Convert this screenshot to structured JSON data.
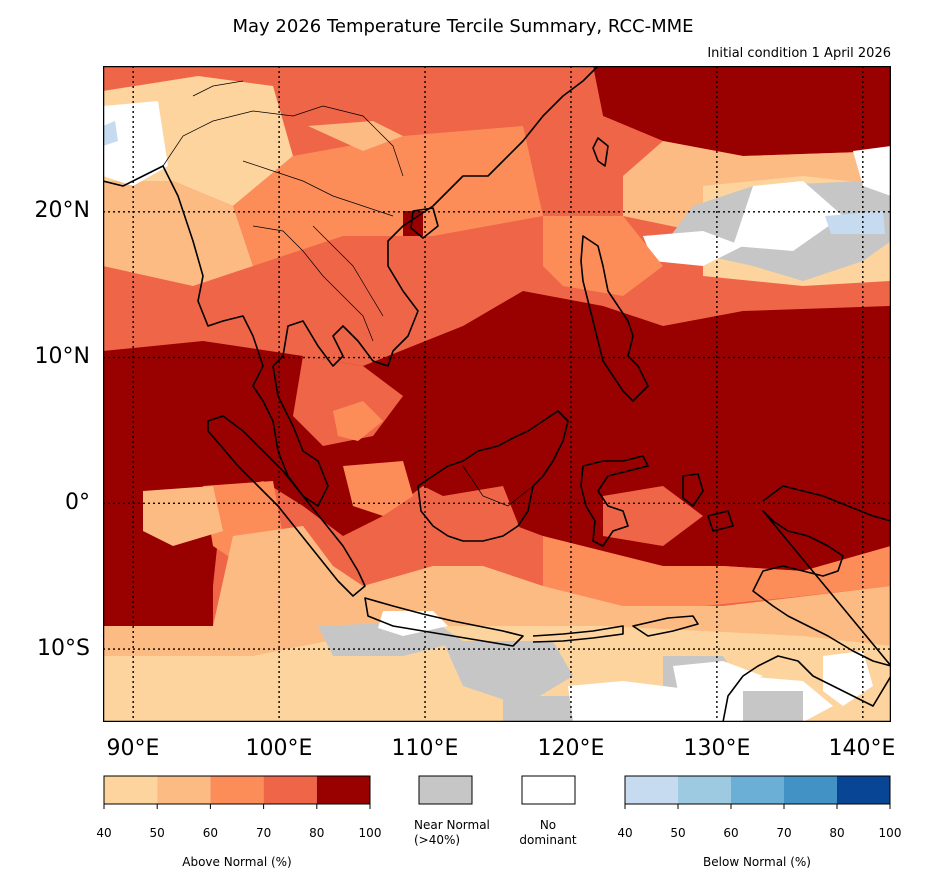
{
  "title": "May 2026 Temperature Tercile Summary, RCC-MME",
  "subtitle": "Initial condition 1 April 2026",
  "map": {
    "extent": {
      "lon_min": 88,
      "lon_max": 142,
      "lat_min": -15,
      "lat_max": 30
    },
    "lat_gridlines": [
      20,
      10,
      0,
      -10
    ],
    "lon_gridlines": [
      90,
      100,
      110,
      120,
      130,
      140
    ],
    "lat_labels": [
      "20°N",
      "10°N",
      "0°",
      "10°S"
    ],
    "lon_labels": [
      "90°E",
      "100°E",
      "110°E",
      "120°E",
      "130°E",
      "140°E"
    ],
    "category_colors": {
      "above_40_50": "#fdd49e",
      "above_50_60": "#fdbb84",
      "above_60_70": "#fc8d59",
      "above_70_80": "#ef6548",
      "above_80_100": "#990000",
      "near_normal": "#c6c6c6",
      "no_dominant": "#ffffff",
      "below_40_50": "#c6dbef"
    },
    "coastline_color": "#000000",
    "gridline_style": "dotted"
  },
  "legend": {
    "above_normal": {
      "title": "Above Normal (%)",
      "ticks": [
        "40",
        "50",
        "60",
        "70",
        "80",
        "100"
      ],
      "colors": [
        "#fdd49e",
        "#fdbb84",
        "#fc8d59",
        "#ef6548",
        "#990000"
      ]
    },
    "near_normal": {
      "label_line1": "Near Normal",
      "label_line2": "(>40%)",
      "color": "#c6c6c6"
    },
    "no_dominant": {
      "label_line1": "No",
      "label_line2": "dominant",
      "color": "#ffffff"
    },
    "below_normal": {
      "title": "Below Normal (%)",
      "ticks": [
        "40",
        "50",
        "60",
        "70",
        "80",
        "100"
      ],
      "colors": [
        "#c6dbef",
        "#9ecae1",
        "#6baed6",
        "#4292c6",
        "#084594"
      ]
    }
  }
}
